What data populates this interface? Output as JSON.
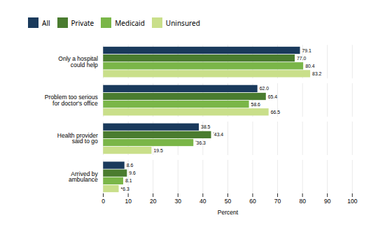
{
  "chart_data": {
    "type": "bar",
    "orientation": "horizontal",
    "categories": [
      "Only a hospital\ncould help",
      "Problem too serious\nfor doctor's office",
      "Health provider\nsaid to go",
      "Arrived by\nambulance"
    ],
    "series": [
      {
        "name": "All",
        "color": "#1a3a5c",
        "values": [
          79.1,
          62.0,
          38.5,
          8.6
        ],
        "value_labels": [
          "79.1",
          "62.0",
          "38.5",
          "8.6"
        ]
      },
      {
        "name": "Private",
        "color": "#4a7c2f",
        "values": [
          77.0,
          65.4,
          43.4,
          9.6
        ],
        "value_labels": [
          "77.0",
          "65.4",
          "ʹ43.4",
          "9.6"
        ]
      },
      {
        "name": "Medicaid",
        "color": "#7ab648",
        "values": [
          80.4,
          58.6,
          36.3,
          8.1
        ],
        "value_labels": [
          "80.4",
          "58.6",
          "ʹ36.3",
          "8.1"
        ]
      },
      {
        "name": "Uninsured",
        "color": "#c9df8a",
        "values": [
          83.2,
          66.5,
          19.5,
          6.3
        ],
        "value_labels": [
          "83.2",
          "66.5",
          "19.5",
          "*6.3"
        ]
      }
    ],
    "xlabel": "Percent",
    "xlim": [
      0,
      100
    ],
    "xticks": [
      0,
      10,
      20,
      30,
      40,
      50,
      60,
      70,
      80,
      90,
      100
    ],
    "grid": true,
    "legend": "top",
    "data_labels": true
  }
}
